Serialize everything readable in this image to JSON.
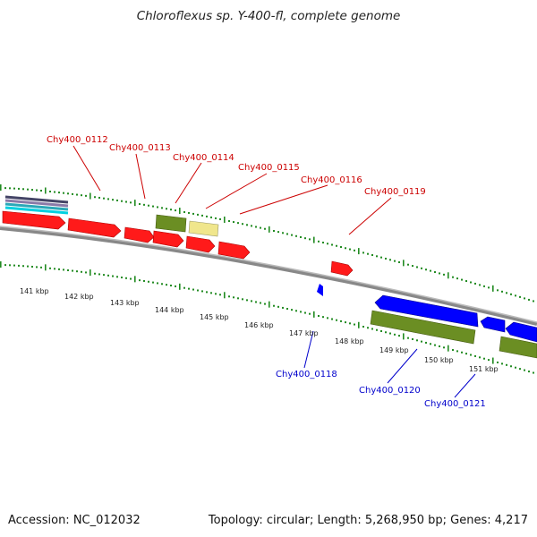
{
  "title": "Chloroflexus sp. Y-400-fl, complete genome",
  "footer": {
    "accession": "Accession: NC_012032",
    "stats": "Topology: circular; Length: 5,268,950 bp; Genes: 4,217"
  },
  "colors": {
    "forward_gene": "#ff0000",
    "reverse_gene": "#0000ff",
    "rna_gene": "#6b8e23",
    "pseudo_gene": "#f0e68c",
    "tick": "#228b22",
    "backbone": "#999999",
    "forward_label": "#cc0000",
    "reverse_label": "#0000cc"
  },
  "scale_labels": [
    "141 kbp",
    "142 kbp",
    "143 kbp",
    "144 kbp",
    "145 kbp",
    "146 kbp",
    "147 kbp",
    "148 kbp",
    "149 kbp",
    "150 kbp",
    "151 kbp"
  ],
  "gene_labels": {
    "forward": [
      "Chy400_0112",
      "Chy400_0113",
      "Chy400_0114",
      "Chy400_0115",
      "Chy400_0116",
      "Chy400_0119"
    ],
    "reverse": [
      "Chy400_0118",
      "Chy400_0120",
      "Chy400_0121"
    ]
  }
}
